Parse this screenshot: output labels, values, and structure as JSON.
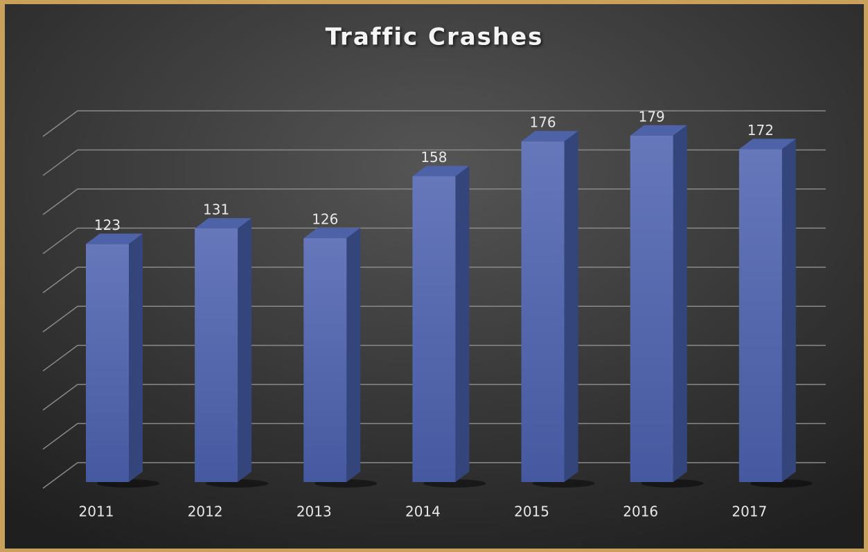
{
  "chart_data": {
    "type": "bar3d",
    "title": "Traffic Crashes",
    "categories": [
      "2011",
      "2012",
      "2013",
      "2014",
      "2015",
      "2016",
      "2017"
    ],
    "values": [
      123,
      131,
      126,
      158,
      176,
      179,
      172
    ],
    "color": "#5a6fb5",
    "ylim": [
      0,
      180
    ],
    "yticks": [
      0,
      20,
      40,
      60,
      80,
      100,
      120,
      140,
      160,
      180
    ],
    "grid": true
  }
}
